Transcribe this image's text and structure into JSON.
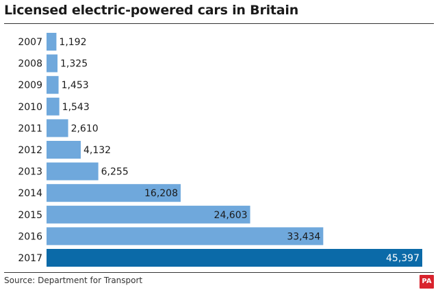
{
  "chart_data": {
    "type": "bar",
    "orientation": "horizontal",
    "title": "Licensed electric-powered cars in Britain",
    "categories": [
      "2007",
      "2008",
      "2009",
      "2010",
      "2011",
      "2012",
      "2013",
      "2014",
      "2015",
      "2016",
      "2017"
    ],
    "values": [
      1192,
      1325,
      1453,
      1543,
      2610,
      4132,
      6255,
      16208,
      24603,
      33434,
      45397
    ],
    "value_labels": [
      "1,192",
      "1,325",
      "1,453",
      "1,543",
      "2,610",
      "4,132",
      "6,255",
      "16,208",
      "24,603",
      "33,434",
      "45,397"
    ],
    "xlabel": "",
    "ylabel": "",
    "xlim": [
      0,
      45397
    ],
    "grid": false,
    "highlight_category": "2017"
  },
  "colors": {
    "bar": "#6fa8dc",
    "highlight_bar": "#0b6aa8",
    "label_dark": "#1a1a1a",
    "label_light": "#ffffff",
    "logo": "#d9232d"
  },
  "footer": {
    "source": "Source: Department for Transport",
    "logo_text": "PA"
  }
}
